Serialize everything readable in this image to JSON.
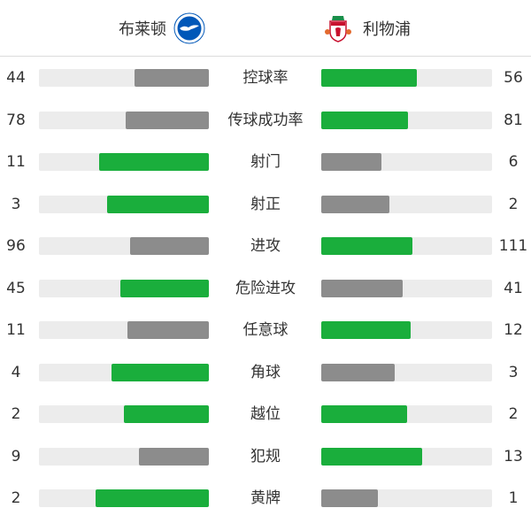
{
  "home": {
    "name": "布莱顿",
    "logo_icon": "brighton-crest-icon"
  },
  "away": {
    "name": "利物浦",
    "logo_icon": "liverpool-crest-icon"
  },
  "colors": {
    "leader": "#1aae3c",
    "other": "#8c8c8c",
    "track": "#ececec"
  },
  "stats": [
    {
      "label": "控球率",
      "home": 44,
      "away": 56
    },
    {
      "label": "传球成功率",
      "home": 78,
      "away": 81
    },
    {
      "label": "射门",
      "home": 11,
      "away": 6
    },
    {
      "label": "射正",
      "home": 3,
      "away": 2
    },
    {
      "label": "进攻",
      "home": 96,
      "away": 111
    },
    {
      "label": "危险进攻",
      "home": 45,
      "away": 41
    },
    {
      "label": "任意球",
      "home": 11,
      "away": 12
    },
    {
      "label": "角球",
      "home": 4,
      "away": 3
    },
    {
      "label": "越位",
      "home": 2,
      "away": 2
    },
    {
      "label": "犯规",
      "home": 9,
      "away": 13
    },
    {
      "label": "黄牌",
      "home": 2,
      "away": 1
    }
  ]
}
